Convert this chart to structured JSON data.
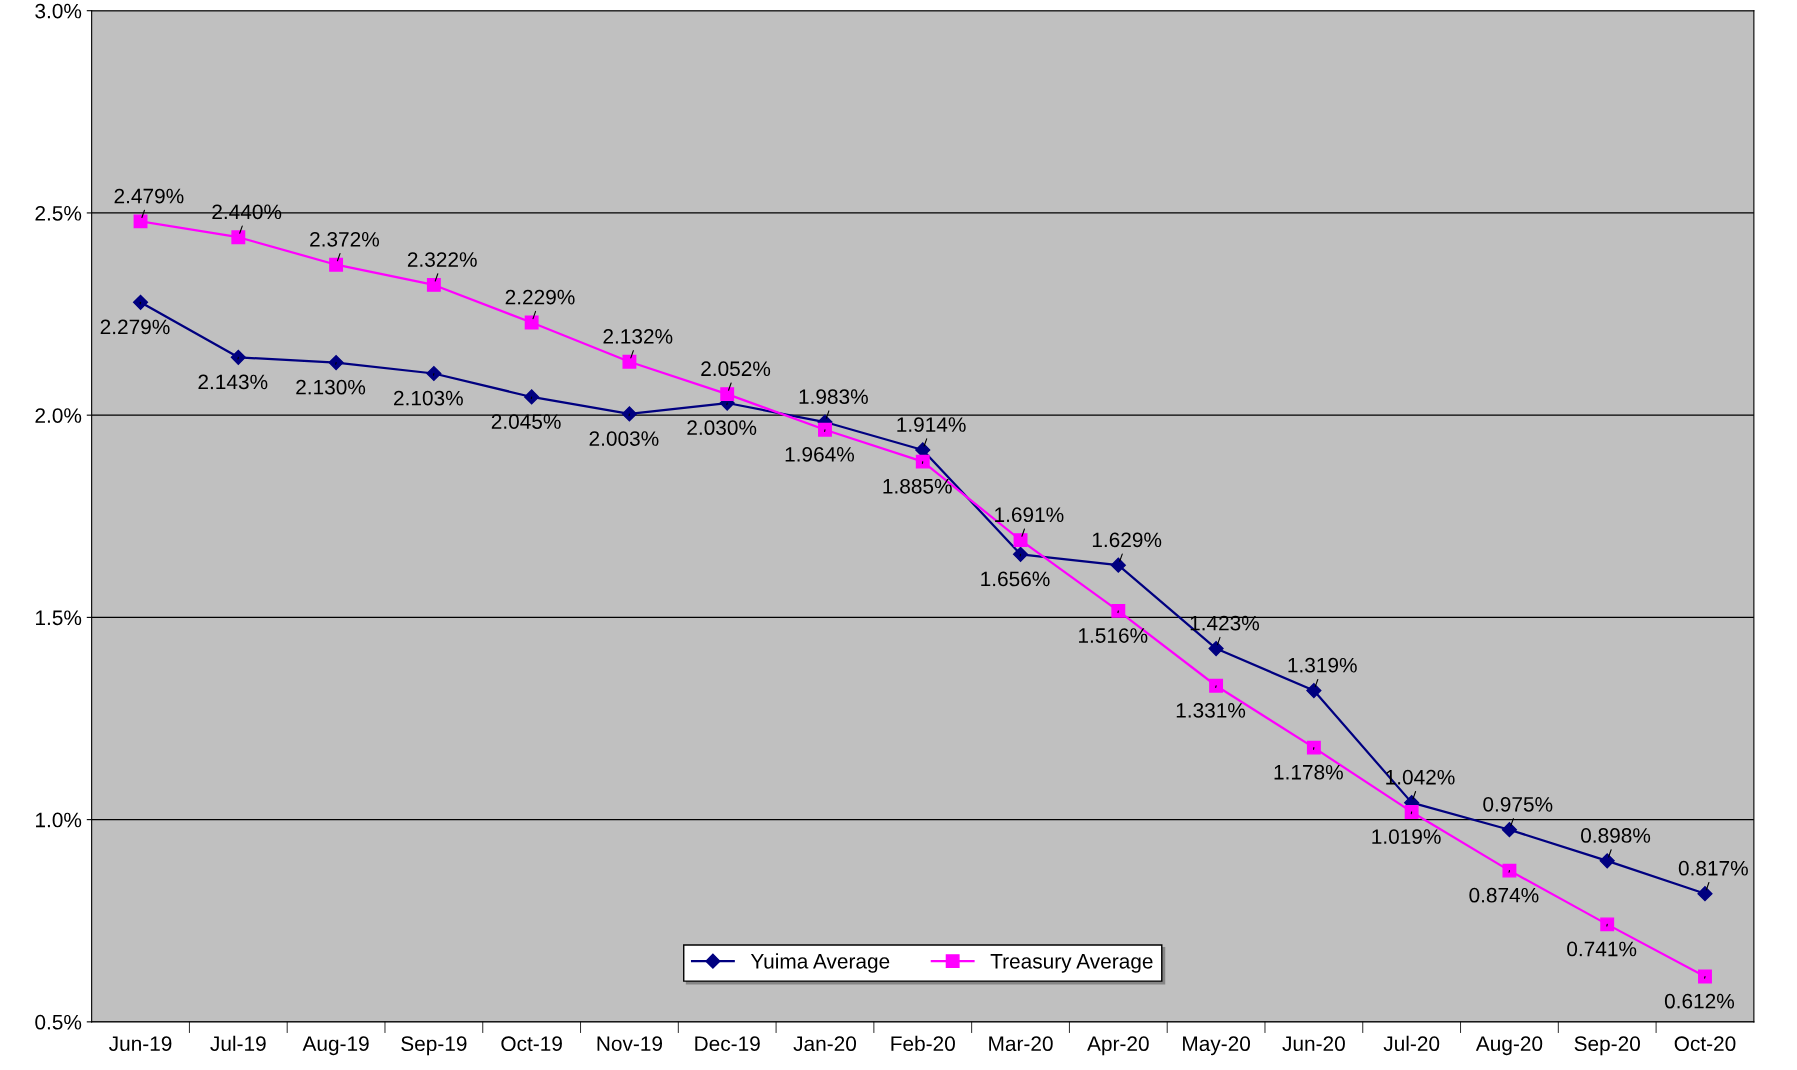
{
  "chart_data": {
    "type": "line",
    "categories": [
      "Jun-19",
      "Jul-19",
      "Aug-19",
      "Sep-19",
      "Oct-19",
      "Nov-19",
      "Dec-19",
      "Jan-20",
      "Feb-20",
      "Mar-20",
      "Apr-20",
      "May-20",
      "Jun-20",
      "Jul-20",
      "Aug-20",
      "Sep-20",
      "Oct-20"
    ],
    "series": [
      {
        "name": "Yuima Average",
        "color": "#000080",
        "marker": "diamond",
        "values": [
          2.279,
          2.143,
          2.13,
          2.103,
          2.045,
          2.003,
          2.03,
          1.983,
          1.914,
          1.656,
          1.629,
          1.423,
          1.319,
          1.042,
          0.975,
          0.898,
          0.817
        ],
        "value_labels": [
          "2.279%",
          "2.143%",
          "2.130%",
          "2.103%",
          "2.045%",
          "2.003%",
          "2.030%",
          "1.983%",
          "1.914%",
          "1.656%",
          "1.629%",
          "1.423%",
          "1.319%",
          "1.042%",
          "0.975%",
          "0.898%",
          "0.817%"
        ]
      },
      {
        "name": "Treasury Average",
        "color": "#ff00ff",
        "marker": "square",
        "values": [
          2.479,
          2.44,
          2.372,
          2.322,
          2.229,
          2.132,
          2.052,
          1.964,
          1.885,
          1.691,
          1.516,
          1.331,
          1.178,
          1.019,
          0.874,
          0.741,
          0.612
        ],
        "value_labels": [
          "2.479%",
          "2.440%",
          "2.372%",
          "2.322%",
          "2.229%",
          "2.132%",
          "2.052%",
          "1.964%",
          "1.885%",
          "1.691%",
          "1.516%",
          "1.331%",
          "1.178%",
          "1.019%",
          "0.874%",
          "0.741%",
          "0.612%"
        ]
      }
    ],
    "ylim": [
      0.5,
      3.0
    ],
    "yticks": [
      {
        "value": 0.5,
        "label": "0.5%"
      },
      {
        "value": 1.0,
        "label": "1.0%"
      },
      {
        "value": 1.5,
        "label": "1.5%"
      },
      {
        "value": 2.0,
        "label": "2.0%"
      },
      {
        "value": 2.5,
        "label": "2.5%"
      },
      {
        "value": 3.0,
        "label": "3.0%"
      }
    ],
    "grid": "y",
    "legend": "bottom",
    "line_style": "solid"
  }
}
